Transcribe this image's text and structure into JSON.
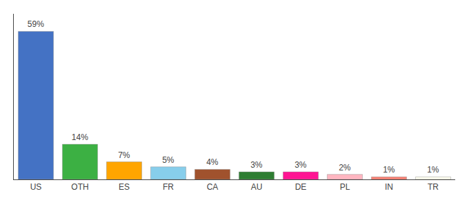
{
  "chart_data": {
    "type": "bar",
    "categories": [
      "US",
      "OTH",
      "ES",
      "FR",
      "CA",
      "AU",
      "DE",
      "PL",
      "IN",
      "TR"
    ],
    "values": [
      59,
      14,
      7,
      5,
      4,
      3,
      3,
      2,
      1,
      1
    ],
    "value_labels": [
      "59%",
      "14%",
      "7%",
      "5%",
      "4%",
      "3%",
      "3%",
      "2%",
      "1%",
      "1%"
    ],
    "colors": [
      "#4472C4",
      "#3CB043",
      "#FFA500",
      "#87CEEB",
      "#A0522D",
      "#2E7D32",
      "#FF1493",
      "#FFB6C1",
      "#FA8072",
      "#FFFFF0"
    ],
    "ylim": [
      0,
      66
    ],
    "grid": false,
    "data_labels": true,
    "tick_labels": "x"
  }
}
